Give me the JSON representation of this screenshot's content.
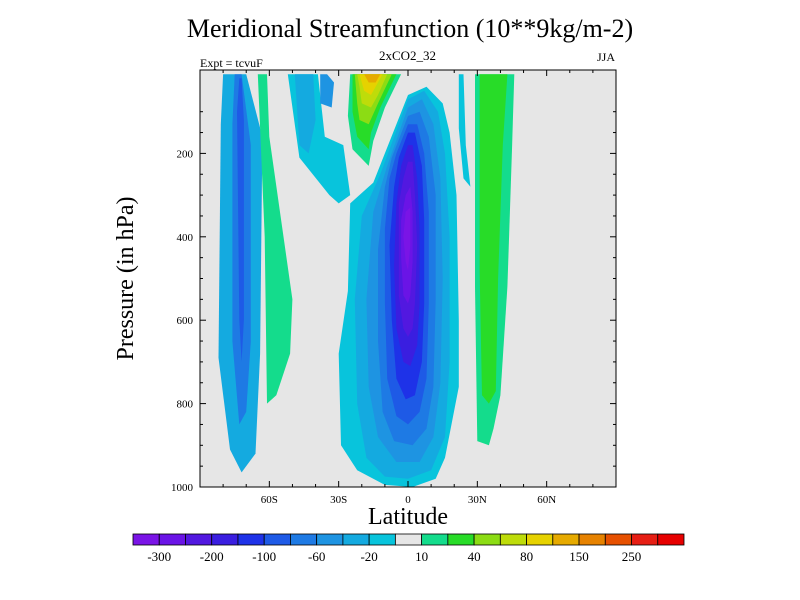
{
  "chart_data": {
    "type": "heatmap",
    "title": "Meridional Streamfunction (10**9kg/m-2)",
    "subtitle": "2xCO2_32",
    "left_string": "Expt = tcvuF",
    "right_string": "JJA",
    "xlabel": "Latitude",
    "ylabel": "Pressure (in hPa)",
    "xlim": [
      -90,
      90
    ],
    "ylim": [
      1000,
      0
    ],
    "x_ticks": [
      -60,
      -30,
      0,
      30,
      60
    ],
    "x_tick_labels": [
      "60S",
      "30S",
      "0",
      "30N",
      "60N"
    ],
    "y_ticks": [
      200,
      400,
      600,
      800,
      1000
    ],
    "y_tick_labels": [
      "200",
      "400",
      "600",
      "800",
      "1000"
    ],
    "background_color": "#e6e6e6",
    "colorbar": {
      "levels": [
        -300,
        -250,
        -200,
        -150,
        -100,
        -80,
        -60,
        -40,
        -20,
        -10,
        10,
        20,
        40,
        60,
        80,
        100,
        150,
        200,
        250,
        300
      ],
      "labeled_levels": [
        "-300",
        "-200",
        "-100",
        "-60",
        "-20",
        "10",
        "40",
        "80",
        "150",
        "250"
      ],
      "colors": [
        "#7a14e6",
        "#6a14e6",
        "#5218e0",
        "#3a1ee0",
        "#1e32e8",
        "#1e5ae6",
        "#1e7ae4",
        "#1e94e2",
        "#14aae0",
        "#08c4dc",
        "#e6e6e6",
        "#14dc8c",
        "#28dc28",
        "#8cdc14",
        "#bedc0a",
        "#e6d200",
        "#e6aa00",
        "#e68200",
        "#e65000",
        "#e61e14",
        "#e60000"
      ]
    },
    "regions": [
      {
        "name": "sh-highlat-cell-outer",
        "value": -20,
        "color": "#14aae0",
        "polygon": [
          [
            -81,
            130
          ],
          [
            -80,
            10
          ],
          [
            -70,
            10
          ],
          [
            -63,
            160
          ],
          [
            -64,
            680
          ],
          [
            -66,
            920
          ],
          [
            -72,
            965
          ],
          [
            -77,
            910
          ],
          [
            -82,
            690
          ]
        ]
      },
      {
        "name": "sh-highlat-cell-inner",
        "value": -60,
        "color": "#1e7ae4",
        "polygon": [
          [
            -76,
            130
          ],
          [
            -75,
            10
          ],
          [
            -72,
            10
          ],
          [
            -68,
            180
          ],
          [
            -68,
            650
          ],
          [
            -70,
            820
          ],
          [
            -73,
            850
          ],
          [
            -76,
            650
          ]
        ]
      },
      {
        "name": "sh-highlat-cell-core",
        "value": -80,
        "color": "#1e5ae6",
        "polygon": [
          [
            -74,
            100
          ],
          [
            -73,
            20
          ],
          [
            -72,
            20
          ],
          [
            -71,
            120
          ],
          [
            -71,
            600
          ],
          [
            -72,
            700
          ],
          [
            -73,
            600
          ]
        ]
      },
      {
        "name": "sh-positive-band",
        "value": 10,
        "color": "#14dc8c",
        "polygon": [
          [
            -65,
            10
          ],
          [
            -61,
            10
          ],
          [
            -60,
            160
          ],
          [
            -50,
            550
          ],
          [
            -51,
            680
          ],
          [
            -57,
            780
          ],
          [
            -61,
            800
          ],
          [
            -62,
            400
          ]
        ]
      },
      {
        "name": "sh-upper-neg-outer",
        "value": -10,
        "color": "#08c4dc",
        "polygon": [
          [
            -52,
            10
          ],
          [
            -39,
            10
          ],
          [
            -36,
            160
          ],
          [
            -28,
            180
          ],
          [
            -25,
            300
          ],
          [
            -30,
            320
          ],
          [
            -34,
            300
          ],
          [
            -47,
            210
          ]
        ]
      },
      {
        "name": "sh-upper-neg-inner",
        "value": -20,
        "color": "#14aae0",
        "polygon": [
          [
            -49,
            10
          ],
          [
            -41,
            10
          ],
          [
            -40,
            120
          ],
          [
            -43,
            200
          ],
          [
            -47,
            180
          ]
        ]
      },
      {
        "name": "sh-upper-neg-core",
        "value": -40,
        "color": "#1e94e2",
        "polygon": [
          [
            -38,
            10
          ],
          [
            -35,
            10
          ],
          [
            -32,
            30
          ],
          [
            -33,
            90
          ],
          [
            -38,
            80
          ]
        ]
      },
      {
        "name": "upper-pos-outer",
        "value": 10,
        "color": "#14dc8c",
        "polygon": [
          [
            -25,
            10
          ],
          [
            -3,
            10
          ],
          [
            -10,
            90
          ],
          [
            -15,
            170
          ],
          [
            -17,
            230
          ],
          [
            -24,
            190
          ],
          [
            -26,
            110
          ]
        ]
      },
      {
        "name": "upper-pos-20",
        "value": 20,
        "color": "#28dc28",
        "polygon": [
          [
            -24,
            10
          ],
          [
            -5,
            10
          ],
          [
            -12,
            90
          ],
          [
            -16,
            150
          ],
          [
            -17,
            190
          ],
          [
            -22,
            160
          ],
          [
            -24,
            100
          ]
        ]
      },
      {
        "name": "upper-pos-40",
        "value": 40,
        "color": "#8cdc14",
        "polygon": [
          [
            -23,
            10
          ],
          [
            -7,
            10
          ],
          [
            -13,
            80
          ],
          [
            -17,
            130
          ],
          [
            -21,
            120
          ],
          [
            -22,
            80
          ]
        ]
      },
      {
        "name": "upper-pos-80",
        "value": 80,
        "color": "#bedc0a",
        "polygon": [
          [
            -22,
            10
          ],
          [
            -9,
            10
          ],
          [
            -13,
            60
          ],
          [
            -16,
            90
          ],
          [
            -20,
            80
          ],
          [
            -21,
            40
          ]
        ]
      },
      {
        "name": "upper-pos-100",
        "value": 100,
        "color": "#e6d200",
        "polygon": [
          [
            -21,
            10
          ],
          [
            -11,
            10
          ],
          [
            -14,
            40
          ],
          [
            -16,
            60
          ],
          [
            -19,
            50
          ]
        ]
      },
      {
        "name": "upper-pos-150",
        "value": 150,
        "color": "#e6aa00",
        "polygon": [
          [
            -19,
            10
          ],
          [
            -12,
            10
          ],
          [
            -14,
            30
          ],
          [
            -17,
            30
          ]
        ]
      },
      {
        "name": "hadley-neg-10",
        "value": -10,
        "color": "#08c4dc",
        "polygon": [
          [
            -15,
            270
          ],
          [
            0,
            60
          ],
          [
            8,
            40
          ],
          [
            15,
            80
          ],
          [
            18,
            150
          ],
          [
            21,
            300
          ],
          [
            22,
            600
          ],
          [
            22,
            760
          ],
          [
            16,
            930
          ],
          [
            12,
            980
          ],
          [
            2,
            1000
          ],
          [
            -10,
            995
          ],
          [
            -22,
            960
          ],
          [
            -29,
            900
          ],
          [
            -30,
            680
          ],
          [
            -26,
            530
          ],
          [
            -25,
            320
          ]
        ]
      },
      {
        "name": "hadley-neg-20",
        "value": -20,
        "color": "#14aae0",
        "polygon": [
          [
            -12,
            250
          ],
          [
            0,
            70
          ],
          [
            7,
            50
          ],
          [
            13,
            100
          ],
          [
            16,
            200
          ],
          [
            18,
            400
          ],
          [
            18,
            700
          ],
          [
            16,
            880
          ],
          [
            10,
            960
          ],
          [
            0,
            980
          ],
          [
            -10,
            975
          ],
          [
            -18,
            930
          ],
          [
            -22,
            800
          ],
          [
            -23,
            550
          ],
          [
            -20,
            350
          ]
        ]
      },
      {
        "name": "hadley-neg-40",
        "value": -40,
        "color": "#1e94e2",
        "polygon": [
          [
            -9,
            230
          ],
          [
            0,
            90
          ],
          [
            6,
            70
          ],
          [
            11,
            130
          ],
          [
            14,
            260
          ],
          [
            15,
            500
          ],
          [
            14,
            750
          ],
          [
            11,
            880
          ],
          [
            5,
            940
          ],
          [
            -5,
            940
          ],
          [
            -13,
            880
          ],
          [
            -17,
            760
          ],
          [
            -18,
            550
          ],
          [
            -15,
            340
          ]
        ]
      },
      {
        "name": "hadley-neg-60",
        "value": -60,
        "color": "#1e7ae4",
        "polygon": [
          [
            -7,
            210
          ],
          [
            0,
            110
          ],
          [
            5,
            100
          ],
          [
            9,
            160
          ],
          [
            12,
            300
          ],
          [
            12,
            550
          ],
          [
            11,
            760
          ],
          [
            8,
            860
          ],
          [
            2,
            900
          ],
          [
            -6,
            890
          ],
          [
            -11,
            820
          ],
          [
            -13,
            650
          ],
          [
            -13,
            430
          ],
          [
            -10,
            280
          ]
        ]
      },
      {
        "name": "hadley-neg-80",
        "value": -80,
        "color": "#1e5ae6",
        "polygon": [
          [
            -5,
            200
          ],
          [
            0,
            130
          ],
          [
            4,
            130
          ],
          [
            7,
            200
          ],
          [
            9,
            340
          ],
          [
            9,
            560
          ],
          [
            8,
            740
          ],
          [
            5,
            820
          ],
          [
            0,
            850
          ],
          [
            -5,
            830
          ],
          [
            -9,
            740
          ],
          [
            -10,
            560
          ],
          [
            -10,
            380
          ],
          [
            -8,
            260
          ]
        ]
      },
      {
        "name": "hadley-neg-100",
        "value": -100,
        "color": "#1e32e8",
        "polygon": [
          [
            -4,
            210
          ],
          [
            0,
            150
          ],
          [
            3,
            150
          ],
          [
            6,
            230
          ],
          [
            7,
            360
          ],
          [
            7,
            560
          ],
          [
            6,
            700
          ],
          [
            3,
            780
          ],
          [
            -1,
            790
          ],
          [
            -5,
            740
          ],
          [
            -7,
            600
          ],
          [
            -8,
            420
          ],
          [
            -6,
            280
          ]
        ]
      },
      {
        "name": "hadley-neg-150",
        "value": -150,
        "color": "#3a1ee0",
        "polygon": [
          [
            -3,
            230
          ],
          [
            0,
            180
          ],
          [
            2,
            180
          ],
          [
            4,
            260
          ],
          [
            5,
            380
          ],
          [
            5,
            560
          ],
          [
            4,
            660
          ],
          [
            1,
            710
          ],
          [
            -2,
            700
          ],
          [
            -5,
            620
          ],
          [
            -6,
            470
          ],
          [
            -5,
            320
          ]
        ]
      },
      {
        "name": "hadley-neg-200",
        "value": -200,
        "color": "#5218e0",
        "polygon": [
          [
            -2,
            260
          ],
          [
            0,
            220
          ],
          [
            2,
            220
          ],
          [
            3,
            300
          ],
          [
            4,
            420
          ],
          [
            3,
            560
          ],
          [
            2,
            620
          ],
          [
            0,
            640
          ],
          [
            -2,
            620
          ],
          [
            -4,
            540
          ],
          [
            -4,
            420
          ],
          [
            -4,
            320
          ]
        ]
      },
      {
        "name": "hadley-neg-250",
        "value": -250,
        "color": "#6a14e6",
        "polygon": [
          [
            -1,
            300
          ],
          [
            1,
            280
          ],
          [
            2,
            340
          ],
          [
            2,
            460
          ],
          [
            1,
            540
          ],
          [
            0,
            560
          ],
          [
            -2,
            540
          ],
          [
            -3,
            450
          ],
          [
            -3,
            360
          ]
        ]
      },
      {
        "name": "hadley-neg-300",
        "value": -300,
        "color": "#7a14e6",
        "polygon": [
          [
            -1,
            340
          ],
          [
            1,
            330
          ],
          [
            1,
            420
          ],
          [
            0,
            480
          ],
          [
            -1,
            460
          ],
          [
            -2,
            400
          ]
        ]
      },
      {
        "name": "nh-positive-outer",
        "value": 10,
        "color": "#14dc8c",
        "polygon": [
          [
            29,
            10
          ],
          [
            46,
            10
          ],
          [
            45,
            190
          ],
          [
            43,
            520
          ],
          [
            40,
            780
          ],
          [
            37,
            860
          ],
          [
            35,
            900
          ],
          [
            30,
            890
          ],
          [
            29,
            520
          ]
        ]
      },
      {
        "name": "nh-positive-inner",
        "value": 20,
        "color": "#28dc28",
        "polygon": [
          [
            31,
            10
          ],
          [
            43,
            10
          ],
          [
            41,
            180
          ],
          [
            39,
            500
          ],
          [
            38,
            770
          ],
          [
            35,
            800
          ],
          [
            32,
            780
          ],
          [
            31,
            480
          ]
        ]
      },
      {
        "name": "nh-subtropic-neg-sliver",
        "value": -10,
        "color": "#08c4dc",
        "polygon": [
          [
            22,
            10
          ],
          [
            24,
            10
          ],
          [
            25,
            180
          ],
          [
            27,
            280
          ],
          [
            24,
            260
          ],
          [
            22,
            140
          ]
        ]
      }
    ]
  }
}
